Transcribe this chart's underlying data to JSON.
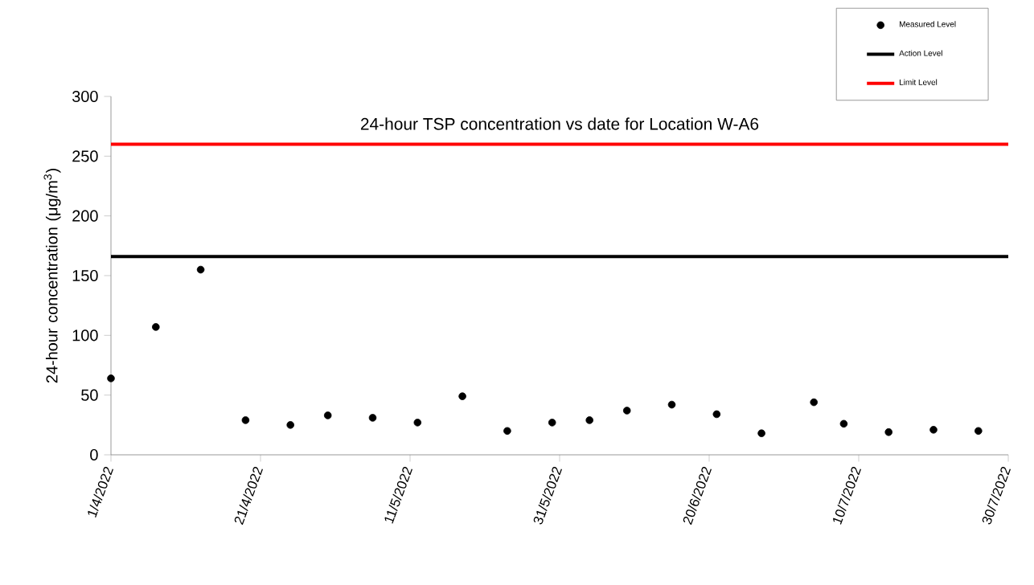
{
  "chart_data": {
    "type": "scatter",
    "title": "24-hour TSP concentration vs date for Location W-A6",
    "ylabel": "24-hour concentration (μg/m$^{3}$)",
    "x": [
      "2022-04-01",
      "2022-04-07",
      "2022-04-13",
      "2022-04-19",
      "2022-04-25",
      "2022-04-30",
      "2022-05-06",
      "2022-05-12",
      "2022-05-18",
      "2022-05-24",
      "2022-05-30",
      "2022-06-04",
      "2022-06-09",
      "2022-06-15",
      "2022-06-21",
      "2022-06-27",
      "2022-07-04",
      "2022-07-08",
      "2022-07-14",
      "2022-07-20",
      "2022-07-26"
    ],
    "series": [
      {
        "name": "Measured Level",
        "color": "#000000",
        "values": [
          64,
          107,
          155,
          29,
          25,
          33,
          31,
          27,
          49,
          20,
          27,
          29,
          37,
          42,
          34,
          18,
          44,
          26,
          19,
          21,
          20
        ]
      }
    ],
    "ref_lines": [
      {
        "axis": "y",
        "value": 166,
        "label": "Action Level",
        "color": "#000000"
      },
      {
        "axis": "y",
        "value": 260,
        "label": "Limit Level",
        "color": "#ff0000"
      }
    ],
    "xlim": [
      "2022-04-01",
      "2022-07-30"
    ],
    "xticks": [
      {
        "value": "2022-04-01",
        "label": "1/4/2022"
      },
      {
        "value": "2022-04-21",
        "label": "21/4/2022"
      },
      {
        "value": "2022-05-11",
        "label": "11/5/2022"
      },
      {
        "value": "2022-05-31",
        "label": "31/5/2022"
      },
      {
        "value": "2022-06-20",
        "label": "20/6/2022"
      },
      {
        "value": "2022-07-10",
        "label": "10/7/2022"
      },
      {
        "value": "2022-07-30",
        "label": "30/7/2022"
      }
    ],
    "ylim": [
      0,
      300
    ],
    "yticks": [
      0,
      50,
      100,
      150,
      200,
      250,
      300
    ],
    "grid": false,
    "legend": "top right",
    "marker": "circle"
  }
}
